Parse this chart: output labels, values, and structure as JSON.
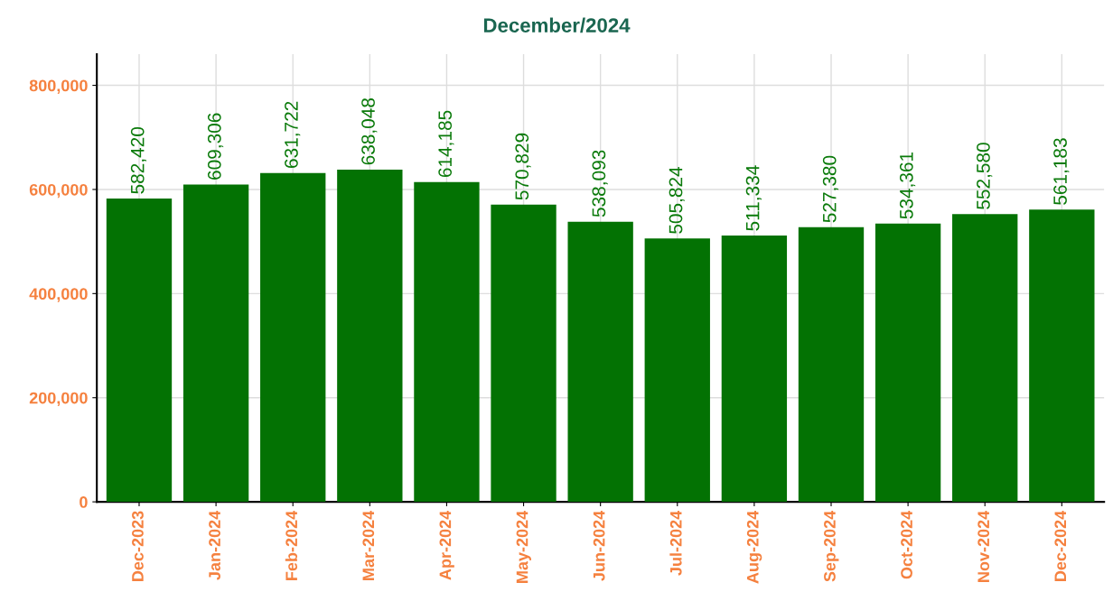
{
  "chart_data": {
    "type": "bar",
    "title": "December/2024",
    "categories": [
      "Dec-2023",
      "Jan-2024",
      "Feb-2024",
      "Mar-2024",
      "Apr-2024",
      "May-2024",
      "Jun-2024",
      "Jul-2024",
      "Aug-2024",
      "Sep-2024",
      "Oct-2024",
      "Nov-2024",
      "Dec-2024"
    ],
    "values": [
      582420,
      609306,
      631722,
      638048,
      614185,
      570829,
      538093,
      505824,
      511334,
      527380,
      534361,
      552580,
      561183
    ],
    "color": "#037203",
    "ylim": [
      0,
      860000
    ],
    "yticks": [
      {
        "value": 0,
        "label": "0"
      },
      {
        "value": 200000,
        "label": "200,000"
      },
      {
        "value": 400000,
        "label": "400,000"
      },
      {
        "value": 600000,
        "label": "600,000"
      },
      {
        "value": 800000,
        "label": "800,000"
      }
    ],
    "value_labels": [
      "582,420",
      "609,306",
      "631,722",
      "638,048",
      "614,185",
      "570,829",
      "538,093",
      "505,824",
      "511,334",
      "527,380",
      "534,361",
      "552,580",
      "561,183"
    ],
    "grid": true
  }
}
